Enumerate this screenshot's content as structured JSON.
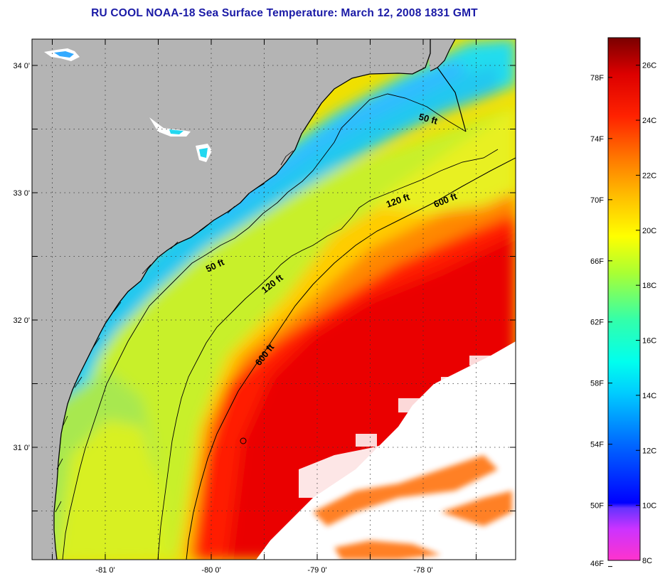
{
  "title": "RU COOL  NOAA-18  Sea Surface Temperature:  March 12, 2008 1831 GMT",
  "map": {
    "lat_ticks": [
      {
        "value": 34.0,
        "label": "34 0'"
      },
      {
        "value": 33.0,
        "label": "33 0'"
      },
      {
        "value": 32.0,
        "label": "32 0'"
      },
      {
        "value": 31.0,
        "label": "31 0'"
      }
    ],
    "lon_ticks": [
      {
        "value": -81.0,
        "label": "-81 0'"
      },
      {
        "value": -80.0,
        "label": "-80 0'"
      },
      {
        "value": -79.0,
        "label": "-79 0'"
      },
      {
        "value": -78.0,
        "label": "-78 0'"
      }
    ],
    "contours": [
      {
        "depth": "50 ft",
        "labels": [
          "50 ft",
          "50 ft"
        ]
      },
      {
        "depth": "120 ft",
        "labels": [
          "120 ft",
          "120 ft"
        ]
      },
      {
        "depth": "600 ft",
        "labels": [
          "600 ft",
          "600 ft"
        ]
      }
    ],
    "colors": {
      "land": "#b4b4b4",
      "cloud": "#ffffff",
      "contour": "#000000"
    }
  },
  "colorbar": {
    "fahrenheit": [
      "78F",
      "74F",
      "70F",
      "66F",
      "62F",
      "58F",
      "54F",
      "50F",
      "46F"
    ],
    "celsius": [
      "26C",
      "24C",
      "22C",
      "20C",
      "18C",
      "16C",
      "14C",
      "12C",
      "10C",
      "8C"
    ],
    "range_c": [
      8,
      27
    ]
  }
}
